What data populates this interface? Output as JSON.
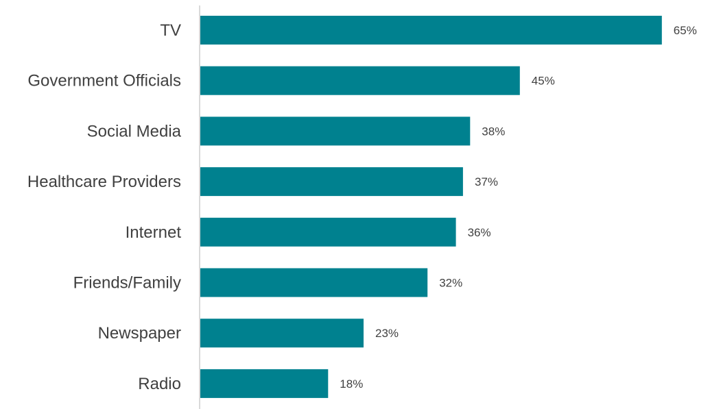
{
  "chart_data": {
    "type": "bar",
    "orientation": "horizontal",
    "categories": [
      "TV",
      "Government Officials",
      "Social Media",
      "Healthcare Providers",
      "Internet",
      "Friends/Family",
      "Newspaper",
      "Radio"
    ],
    "values": [
      65,
      45,
      38,
      37,
      36,
      32,
      23,
      18
    ],
    "value_labels": [
      "65%",
      "45%",
      "38%",
      "37%",
      "36%",
      "32%",
      "23%",
      "18%"
    ],
    "value_unit": "%",
    "xlim": [
      0,
      70
    ],
    "grid": false,
    "legend": "none",
    "bar_color": "#00818F",
    "axis_color": "#D9D9D9",
    "text_color": "#404040"
  }
}
